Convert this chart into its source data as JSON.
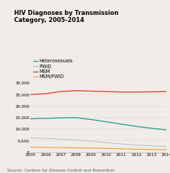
{
  "title": "HIV Diagnoses by Transmission\nCategory, 2005-2014",
  "years": [
    2005,
    2006,
    2007,
    2008,
    2009,
    2010,
    2011,
    2012,
    2013,
    2014
  ],
  "series": {
    "Heterosexuals": {
      "values": [
        14500,
        14700,
        14900,
        15000,
        14200,
        13200,
        12200,
        11200,
        10400,
        9700
      ],
      "color": "#2a9d8f",
      "linewidth": 1.0
    },
    "PWID": {
      "values": [
        6300,
        6000,
        5700,
        5300,
        4800,
        4200,
        3600,
        3100,
        2800,
        2500
      ],
      "color": "#b8c0cc",
      "linewidth": 0.8
    },
    "MSM": {
      "values": [
        25000,
        25400,
        26300,
        26700,
        26500,
        26300,
        26100,
        26100,
        26200,
        26300
      ],
      "color": "#d94030",
      "linewidth": 1.0
    },
    "MSM/PWID": {
      "values": [
        2200,
        2100,
        2000,
        1900,
        1800,
        1700,
        1500,
        1300,
        1200,
        1100
      ],
      "color": "#e8a020",
      "linewidth": 0.8
    }
  },
  "legend_order": [
    "Heterosexuals",
    "PWID",
    "MSM",
    "MSM/PWID"
  ],
  "ylim": [
    0,
    30000
  ],
  "yticks": [
    0,
    5000,
    10000,
    15000,
    20000,
    25000,
    30000
  ],
  "ytick_labels": [
    "0",
    "5,000",
    "10,000",
    "15,000",
    "20,000",
    "25,000",
    "30,000"
  ],
  "source_text": "Source: Centers for Disease Control and Prevention",
  "bg_color": "#f0ede8",
  "title_fontsize": 6.0,
  "legend_fontsize": 4.8,
  "tick_fontsize": 4.2,
  "source_fontsize": 4.2
}
